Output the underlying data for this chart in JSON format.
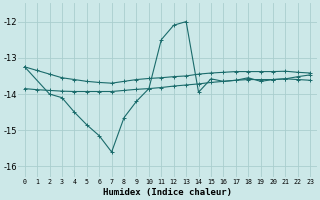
{
  "xlabel": "Humidex (Indice chaleur)",
  "bg_color": "#cce8e8",
  "grid_color": "#aacece",
  "line_color": "#1a6b6b",
  "ylim": [
    -16.3,
    -11.5
  ],
  "xlim": [
    -0.5,
    23.5
  ],
  "yticks": [
    -16,
    -15,
    -14,
    -13,
    -12
  ],
  "xticks": [
    0,
    1,
    2,
    3,
    4,
    5,
    6,
    7,
    8,
    9,
    10,
    11,
    12,
    13,
    14,
    15,
    16,
    17,
    18,
    19,
    20,
    21,
    22,
    23
  ],
  "series1_x": [
    0,
    1,
    2,
    3,
    4,
    5,
    6,
    7,
    8,
    9,
    10,
    11,
    12,
    13,
    14,
    15,
    16,
    17,
    18,
    19,
    20,
    21,
    22,
    23
  ],
  "series1_y": [
    -13.25,
    -13.35,
    -13.45,
    -13.55,
    -13.6,
    -13.65,
    -13.68,
    -13.7,
    -13.65,
    -13.6,
    -13.57,
    -13.55,
    -13.52,
    -13.5,
    -13.45,
    -13.42,
    -13.4,
    -13.38,
    -13.38,
    -13.38,
    -13.38,
    -13.37,
    -13.4,
    -13.42
  ],
  "series2_x": [
    0,
    1,
    2,
    3,
    4,
    5,
    6,
    7,
    8,
    9,
    10,
    11,
    12,
    13,
    14,
    15,
    16,
    17,
    18,
    19,
    20,
    21,
    22,
    23
  ],
  "series2_y": [
    -13.85,
    -13.88,
    -13.9,
    -13.92,
    -13.93,
    -13.93,
    -13.93,
    -13.93,
    -13.9,
    -13.87,
    -13.85,
    -13.82,
    -13.78,
    -13.75,
    -13.72,
    -13.68,
    -13.65,
    -13.62,
    -13.6,
    -13.6,
    -13.6,
    -13.58,
    -13.6,
    -13.62
  ],
  "series3_x": [
    0,
    2,
    3,
    4,
    5,
    6,
    7,
    8,
    9,
    10,
    11,
    12,
    13,
    14,
    15,
    16,
    17,
    18,
    19,
    20,
    21,
    22,
    23
  ],
  "series3_y": [
    -13.25,
    -14.0,
    -14.1,
    -14.5,
    -14.85,
    -15.15,
    -15.6,
    -14.65,
    -14.2,
    -13.85,
    -12.5,
    -12.1,
    -12.0,
    -13.95,
    -13.58,
    -13.65,
    -13.62,
    -13.55,
    -13.65,
    -13.6,
    -13.58,
    -13.52,
    -13.47
  ]
}
